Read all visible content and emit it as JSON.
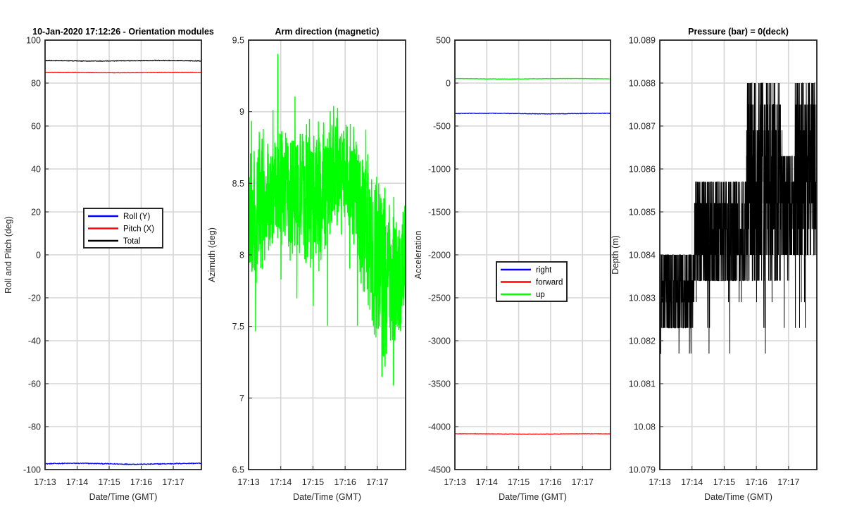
{
  "chart_data": [
    {
      "type": "line",
      "title": "10-Jan-2020 17:12:26 - Orientation modules",
      "xlabel": "Date/Time (GMT)",
      "ylabel": "Roll and Pitch (deg)",
      "ylim": [
        -100,
        100
      ],
      "yticks": [
        -100,
        -80,
        -60,
        -40,
        -20,
        0,
        20,
        40,
        60,
        80,
        100
      ],
      "x_ticks": [
        "17:13",
        "17:14",
        "17:15",
        "17:16",
        "17:17"
      ],
      "grid": true,
      "legend": {
        "position": "center"
      },
      "series": [
        {
          "name": "Roll (Y)",
          "color": "#0000ff",
          "level": -97.3,
          "noise": 0.4
        },
        {
          "name": "Pitch (X)",
          "color": "#ff0000",
          "level": 84.9,
          "noise": 0.2
        },
        {
          "name": "Total",
          "color": "#000000",
          "level": 90.4,
          "noise": 0.3
        }
      ]
    },
    {
      "type": "line",
      "title": "Arm direction (magnetic)",
      "xlabel": "Date/Time (GMT)",
      "ylabel": "Azimuth (deg)",
      "ylim": [
        6.5,
        9.5
      ],
      "yticks": [
        6.5,
        7,
        7.5,
        8,
        8.5,
        9,
        9.5
      ],
      "x_ticks": [
        "17:13",
        "17:14",
        "17:15",
        "17:16",
        "17:17"
      ],
      "grid": true,
      "series": [
        {
          "name": "Azimuth",
          "color": "#00ff00",
          "envelope_mean": [
            8.3,
            8.35,
            8.45,
            8.45,
            8.4,
            8.5,
            8.6,
            8.4,
            8.0,
            7.85,
            7.9
          ],
          "envelope_amp": [
            0.45,
            0.4,
            0.4,
            0.4,
            0.45,
            0.45,
            0.35,
            0.45,
            0.5,
            0.5,
            0.45
          ]
        }
      ]
    },
    {
      "type": "line",
      "title": "",
      "xlabel": "Date/Time (GMT)",
      "ylabel": "Acceleration",
      "ylim": [
        -4500,
        500
      ],
      "yticks": [
        -4500,
        -4000,
        -3500,
        -3000,
        -2500,
        -2000,
        -1500,
        -1000,
        -500,
        0,
        500
      ],
      "x_ticks": [
        "17:13",
        "17:14",
        "17:15",
        "17:16",
        "17:17"
      ],
      "grid": true,
      "legend": {
        "position": "center"
      },
      "series": [
        {
          "name": "right",
          "color": "#0000ff",
          "level": -355,
          "noise": 6
        },
        {
          "name": "forward",
          "color": "#ff0000",
          "level": -4085,
          "noise": 5
        },
        {
          "name": "up",
          "color": "#00ff00",
          "level": 50,
          "noise": 5
        }
      ]
    },
    {
      "type": "line",
      "title": "Pressure (bar) = 0(deck)",
      "xlabel": "Date/Time (GMT)",
      "ylabel": "Depth (m)",
      "ylim": [
        10.079,
        10.089
      ],
      "yticks": [
        "10.079",
        "10.08",
        "10.081",
        "10.082",
        "10.083",
        "10.084",
        "10.085",
        "10.086",
        "10.087",
        "10.088",
        "10.089"
      ],
      "x_ticks": [
        "17:13",
        "17:14",
        "17:15",
        "17:16",
        "17:17"
      ],
      "grid": true,
      "series": [
        {
          "name": "Depth",
          "color": "#000000",
          "levels": [
            10.0817,
            10.0823,
            10.0829,
            10.0834,
            10.084,
            10.0846,
            10.0852,
            10.0857,
            10.0863,
            10.0869,
            10.0875,
            10.088
          ]
        }
      ]
    }
  ]
}
